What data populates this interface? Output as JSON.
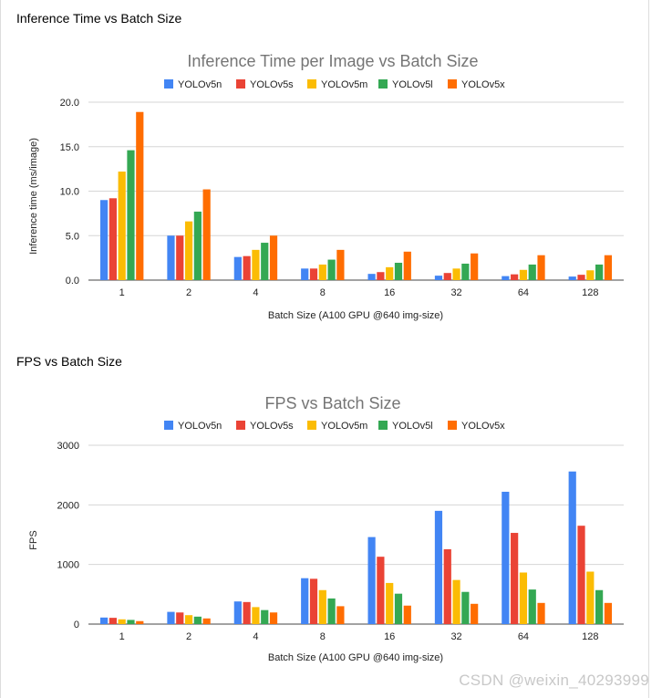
{
  "headings": {
    "inference": "Inference Time vs Batch Size",
    "fps": "FPS vs Batch Size"
  },
  "watermark": "CSDN @weixin_40293999",
  "chart_data": [
    {
      "type": "bar",
      "title": "Inference Time per Image vs Batch Size",
      "xlabel": "Batch Size (A100 GPU @640 img-size)",
      "ylabel": "Inference time (ms/image)",
      "ylim": [
        0,
        20
      ],
      "yticks": [
        0,
        5,
        10,
        15,
        20
      ],
      "ytick_labels": [
        "0.0",
        "5.0",
        "10.0",
        "15.0",
        "20.0"
      ],
      "legend_position": "top",
      "grid": true,
      "categories": [
        "1",
        "2",
        "4",
        "8",
        "16",
        "32",
        "64",
        "128"
      ],
      "series": [
        {
          "name": "YOLOv5n",
          "color": "#4285f4",
          "values": [
            9.0,
            5.0,
            2.6,
            1.3,
            0.7,
            0.5,
            0.45,
            0.4
          ]
        },
        {
          "name": "YOLOv5s",
          "color": "#ea4335",
          "values": [
            9.2,
            5.0,
            2.7,
            1.3,
            0.9,
            0.8,
            0.65,
            0.6
          ]
        },
        {
          "name": "YOLOv5m",
          "color": "#fbbc04",
          "values": [
            12.2,
            6.6,
            3.4,
            1.75,
            1.45,
            1.3,
            1.15,
            1.1
          ]
        },
        {
          "name": "YOLOv5l",
          "color": "#34a853",
          "values": [
            14.6,
            7.7,
            4.2,
            2.3,
            1.95,
            1.85,
            1.75,
            1.75
          ]
        },
        {
          "name": "YOLOv5x",
          "color": "#ff6d01",
          "values": [
            18.9,
            10.2,
            5.0,
            3.4,
            3.2,
            3.0,
            2.8,
            2.8
          ]
        }
      ]
    },
    {
      "type": "bar",
      "title": "FPS vs Batch Size",
      "xlabel": "Batch Size (A100 GPU @640 img-size)",
      "ylabel": "FPS",
      "ylim": [
        0,
        3000
      ],
      "yticks": [
        0,
        1000,
        2000,
        3000
      ],
      "ytick_labels": [
        "0",
        "1000",
        "2000",
        "3000"
      ],
      "legend_position": "top",
      "grid": true,
      "categories": [
        "1",
        "2",
        "4",
        "8",
        "16",
        "32",
        "64",
        "128"
      ],
      "series": [
        {
          "name": "YOLOv5n",
          "color": "#4285f4",
          "values": [
            110,
            205,
            380,
            770,
            1460,
            1900,
            2220,
            2560
          ]
        },
        {
          "name": "YOLOv5s",
          "color": "#ea4335",
          "values": [
            105,
            195,
            370,
            760,
            1130,
            1255,
            1530,
            1650
          ]
        },
        {
          "name": "YOLOv5m",
          "color": "#fbbc04",
          "values": [
            80,
            150,
            285,
            570,
            690,
            740,
            865,
            880
          ]
        },
        {
          "name": "YOLOv5l",
          "color": "#34a853",
          "values": [
            70,
            125,
            235,
            430,
            510,
            540,
            580,
            570
          ]
        },
        {
          "name": "YOLOv5x",
          "color": "#ff6d01",
          "values": [
            50,
            95,
            195,
            300,
            310,
            340,
            355,
            355
          ]
        }
      ]
    }
  ]
}
